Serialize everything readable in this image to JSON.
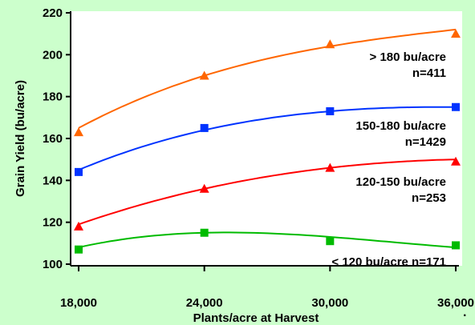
{
  "colors": {
    "frame_background": "#ccffcc",
    "plot_background": "#ffffff"
  },
  "chart_data": {
    "type": "scatter",
    "xlabel": "Plants/acre at Harvest",
    "ylabel": "Grain Yield (bu/acre)",
    "xlim": [
      18000,
      36000
    ],
    "ylim": [
      100,
      220
    ],
    "x_ticks": [
      18000,
      24000,
      30000,
      36000
    ],
    "x_tick_labels": [
      "18,000",
      "24,000",
      "30,000",
      "36,000"
    ],
    "y_ticks": [
      100,
      120,
      140,
      160,
      180,
      200,
      220
    ],
    "y_tick_labels": [
      "100",
      "120",
      "140",
      "160",
      "180",
      "200",
      "220"
    ],
    "grid": false,
    "trendlines": "quadratic",
    "series": [
      {
        "label_line1": "> 180 bu/acre",
        "label_line2": "n=411",
        "color": "#ff6600",
        "marker": "triangle",
        "x": [
          18000,
          24000,
          30000,
          36000
        ],
        "y": [
          163,
          190,
          205,
          210
        ],
        "curve": [
          165,
          190,
          204,
          212
        ]
      },
      {
        "label_line1": "150-180 bu/acre",
        "label_line2": "n=1429",
        "color": "#0033ff",
        "marker": "square",
        "x": [
          18000,
          24000,
          30000,
          36000
        ],
        "y": [
          144,
          165,
          173,
          175
        ],
        "curve": [
          145,
          164,
          173,
          175
        ]
      },
      {
        "label_line1": "120-150 bu/acre",
        "label_line2": "n=253",
        "color": "#ff0000",
        "marker": "triangle",
        "x": [
          18000,
          24000,
          30000,
          36000
        ],
        "y": [
          118,
          136,
          146,
          149
        ],
        "curve": [
          119,
          136,
          146,
          150
        ]
      },
      {
        "label_line1": "< 120 bu/acre  n=171",
        "label_line2": "",
        "color": "#00bb00",
        "marker": "square",
        "x": [
          18000,
          24000,
          30000,
          36000
        ],
        "y": [
          107,
          115,
          111,
          109
        ],
        "curve": [
          108,
          115,
          113,
          108
        ]
      }
    ]
  },
  "trailing_mark": "."
}
